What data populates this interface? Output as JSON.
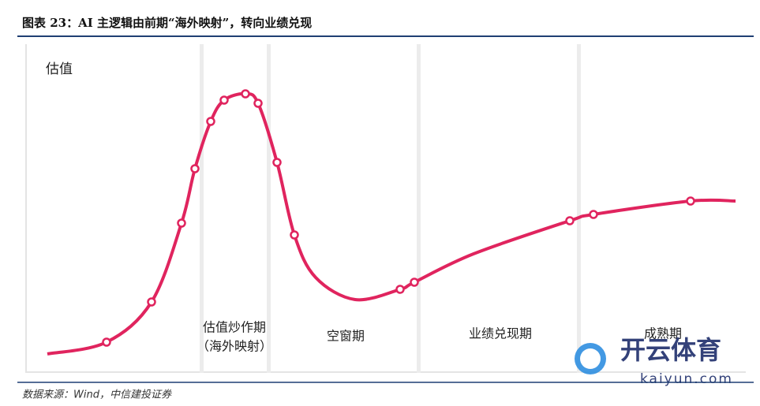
{
  "header": {
    "title": "图表 23：AI 主逻辑由前期“海外映射”，转向业绩兑现"
  },
  "diagram": {
    "y_label": "估值",
    "phases": [
      {
        "label": "估值炒作期",
        "sublabel": "（海外映射）"
      },
      {
        "label": "空窗期"
      },
      {
        "label": "业绩兑现期"
      },
      {
        "label": "成熟期"
      }
    ]
  },
  "watermark": {
    "name": "开云体育",
    "url": "kaiyun.com"
  },
  "footer": {
    "source": "数据来源：Wind，中信建投证券"
  }
}
